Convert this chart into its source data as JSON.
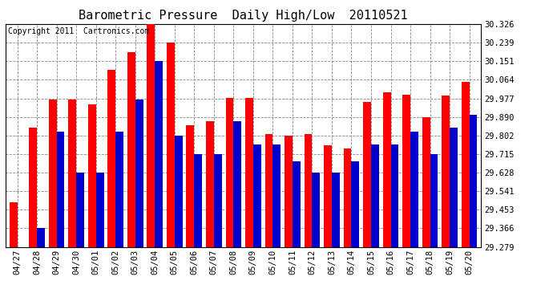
{
  "title": "Barometric Pressure  Daily High/Low  20110521",
  "copyright": "Copyright 2011  Cartronics.com",
  "categories": [
    "04/27",
    "04/28",
    "04/29",
    "04/30",
    "05/01",
    "05/02",
    "05/03",
    "05/04",
    "05/05",
    "05/06",
    "05/07",
    "05/08",
    "05/09",
    "05/10",
    "05/11",
    "05/12",
    "05/13",
    "05/14",
    "05/15",
    "05/16",
    "05/17",
    "05/18",
    "05/19",
    "05/20"
  ],
  "high_values": [
    29.49,
    29.84,
    29.97,
    29.97,
    29.95,
    30.11,
    30.195,
    30.326,
    30.24,
    29.85,
    29.87,
    29.98,
    29.98,
    29.81,
    29.8,
    29.81,
    29.755,
    29.74,
    29.96,
    30.005,
    29.995,
    29.89,
    29.99,
    30.055
  ],
  "low_values": [
    29.279,
    29.366,
    29.82,
    29.628,
    29.628,
    29.82,
    29.97,
    30.151,
    29.802,
    29.715,
    29.715,
    29.87,
    29.76,
    29.76,
    29.68,
    29.628,
    29.628,
    29.68,
    29.76,
    29.76,
    29.82,
    29.715,
    29.84,
    29.9
  ],
  "high_color": "#ff0000",
  "low_color": "#0000cc",
  "bg_color": "#ffffff",
  "grid_color": "#888888",
  "ymin": 29.279,
  "ymax": 30.326,
  "yticks": [
    29.279,
    29.366,
    29.453,
    29.541,
    29.628,
    29.715,
    29.802,
    29.89,
    29.977,
    30.064,
    30.151,
    30.239,
    30.326
  ],
  "title_fontsize": 11,
  "copyright_fontsize": 7,
  "tick_fontsize": 7.5,
  "bar_width": 0.4
}
